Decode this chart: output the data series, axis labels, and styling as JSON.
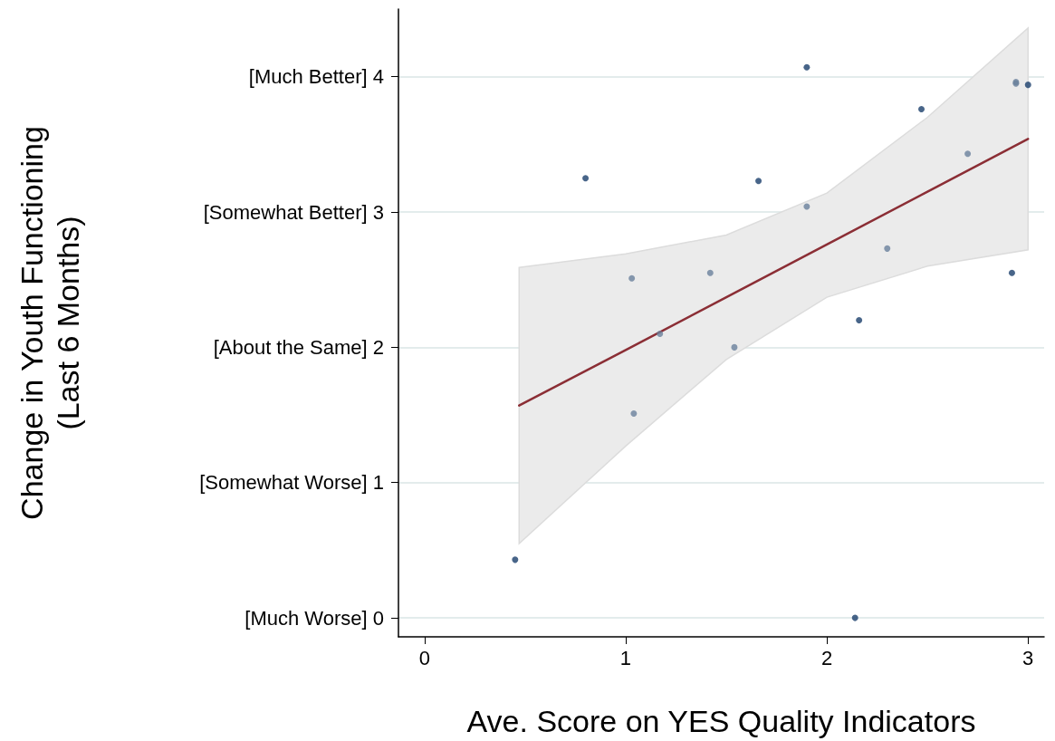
{
  "chart_data": {
    "type": "scatter",
    "xlabel": "Ave. Score on YES Quality Indicators",
    "ylabel": "Change in Youth Functioning\n(Last 6 Months)",
    "xlim": [
      -0.13,
      3.08
    ],
    "xticks": [
      0,
      1,
      2,
      3
    ],
    "ylim": [
      -0.14,
      4.5
    ],
    "yticks": [
      {
        "value": 0,
        "label": "[Much Worse] 0"
      },
      {
        "value": 1,
        "label": "[Somewhat Worse] 1"
      },
      {
        "value": 2,
        "label": "[About the Same] 2"
      },
      {
        "value": 3,
        "label": "[Somewhat Better] 3"
      },
      {
        "value": 4,
        "label": "[Much Better] 4"
      }
    ],
    "grid": "y",
    "marker": "circle",
    "series": [
      {
        "type": "line",
        "marker": "none",
        "color": "#8b2e35",
        "x": [
          0.47,
          1.0,
          1.5,
          2.0,
          2.5,
          3.0
        ],
        "values": [
          1.57,
          1.98,
          2.37,
          2.76,
          3.15,
          3.54
        ],
        "lower": [
          0.55,
          1.27,
          1.91,
          2.37,
          2.6,
          2.72
        ],
        "upper": [
          2.59,
          2.69,
          2.83,
          3.14,
          3.7,
          4.36
        ]
      },
      {
        "color": "#1a3f6b",
        "x": [
          1.9,
          3.0,
          2.47,
          0.8,
          1.66,
          2.92,
          2.16,
          0.45,
          2.14
        ],
        "values": [
          4.07,
          3.94,
          3.76,
          3.25,
          3.23,
          2.55,
          2.2,
          0.43,
          0.0
        ]
      },
      {
        "color": "#6a819c",
        "x": [
          2.94,
          2.94,
          1.9,
          2.7,
          2.3,
          1.03,
          1.42,
          1.17,
          1.54,
          1.04
        ],
        "values": [
          3.96,
          3.95,
          3.04,
          3.43,
          2.73,
          2.51,
          2.55,
          2.1,
          2.0,
          1.51
        ]
      }
    ]
  }
}
